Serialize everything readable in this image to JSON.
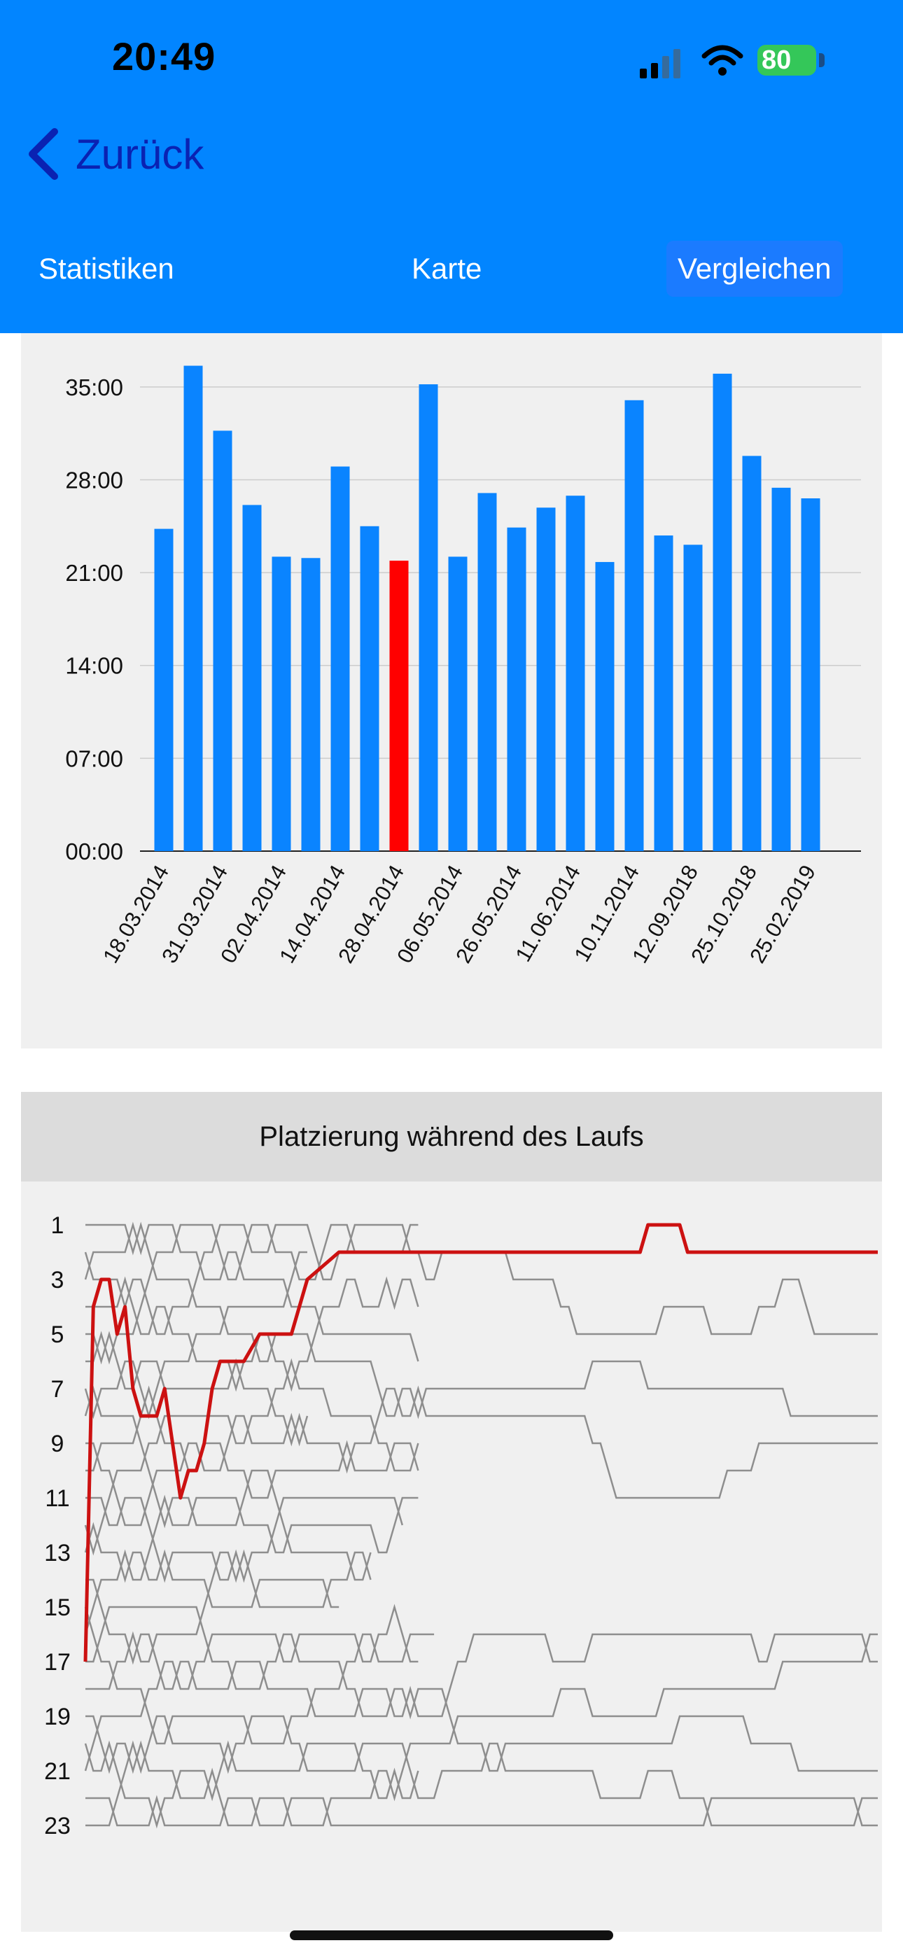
{
  "status_bar": {
    "time": "20:49",
    "battery": "80"
  },
  "nav": {
    "back_label": "Zurück"
  },
  "tabs": [
    {
      "label": "Statistiken",
      "selected": false
    },
    {
      "label": "Karte",
      "selected": false
    },
    {
      "label": "Vergleichen",
      "selected": true
    }
  ],
  "colors": {
    "accent": "#0285FF",
    "bar": "#0A84FF",
    "highlight": "#FF0000",
    "rank_line": "#CC1111",
    "grid": "#CCCCCC"
  },
  "chart_data": [
    {
      "type": "bar",
      "yticks": [
        "00:00",
        "07:00",
        "14:00",
        "21:00",
        "28:00",
        "35:00"
      ],
      "ylim_minutes": [
        0,
        38
      ],
      "grid": true,
      "x_tick_labels": [
        "18.03.2014",
        "31.03.2014",
        "02.04.2014",
        "14.04.2014",
        "28.04.2014",
        "06.05.2014",
        "26.05.2014",
        "11.06.2014",
        "10.11.2014",
        "12.09.2018",
        "25.10.2018",
        "25.02.2019"
      ],
      "values_minutes": [
        24.3,
        36.6,
        31.7,
        26.1,
        22.2,
        22.1,
        29.0,
        24.5,
        21.9,
        35.2,
        22.2,
        27.0,
        24.4,
        25.9,
        26.8,
        21.8,
        34.0,
        23.8,
        23.1,
        36.0,
        29.8,
        27.4,
        26.6
      ],
      "highlight_index": 8
    },
    {
      "type": "line",
      "title": "Platzierung während des Laufs",
      "yticks": [
        "1",
        "3",
        "5",
        "7",
        "9",
        "11",
        "13",
        "15",
        "17",
        "19",
        "21",
        "23"
      ],
      "ylim": [
        1,
        23
      ],
      "y_reversed": true,
      "runners": 23,
      "highlight_series": {
        "x": [
          0,
          1,
          2,
          3,
          4,
          5,
          6,
          7,
          8,
          9,
          10,
          12,
          13,
          14,
          15,
          16,
          17,
          18,
          19,
          20,
          22,
          24,
          26,
          28,
          32,
          35,
          38,
          39,
          70,
          71,
          75,
          76,
          100
        ],
        "rank": [
          17,
          4,
          3,
          3,
          5,
          4,
          7,
          8,
          8,
          8,
          7,
          11,
          10,
          10,
          9,
          7,
          6,
          6,
          6,
          6,
          5,
          5,
          5,
          3,
          2,
          2,
          2,
          2,
          2,
          1,
          1,
          2,
          2
        ]
      }
    }
  ]
}
